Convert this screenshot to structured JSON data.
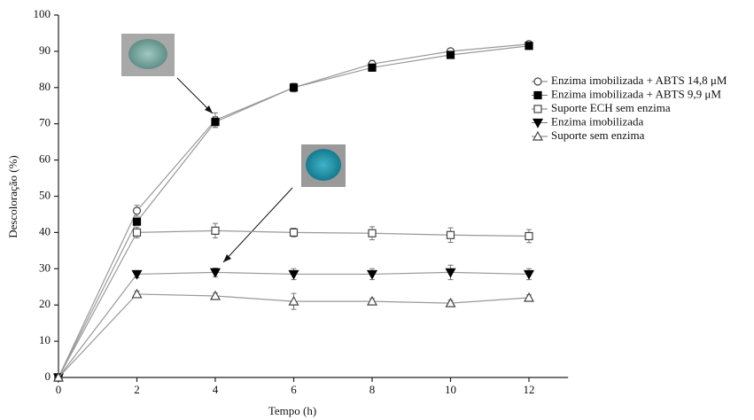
{
  "chart_data": {
    "type": "line",
    "x_label": "Tempo (h)",
    "y_label": "Descoloração (%)",
    "x": [
      0,
      2,
      4,
      6,
      8,
      10,
      12
    ],
    "xlim": [
      0,
      13
    ],
    "xticks": [
      0,
      2,
      4,
      6,
      8,
      10,
      12
    ],
    "ylim": [
      0,
      100
    ],
    "yticks": [
      0,
      10,
      20,
      30,
      40,
      50,
      60,
      70,
      80,
      90,
      100
    ],
    "grid": false,
    "legend": "right",
    "series": [
      {
        "name": "Enzima imobilizada + ABTS 14,8 μM",
        "color": "#444444",
        "marker": "circle-open",
        "values": [
          0,
          46,
          71,
          80,
          86.5,
          90,
          92
        ],
        "errors": [
          0,
          1.5,
          2,
          1.2,
          1,
          0.8,
          0.8
        ]
      },
      {
        "name": "Enzima imobilizada + ABTS 9,9 μM",
        "color": "#000000",
        "marker": "square-filled",
        "values": [
          0,
          43,
          70.5,
          80,
          85.5,
          89,
          91.5
        ],
        "errors": [
          0,
          1,
          1.5,
          1,
          1,
          0.8,
          0.8
        ]
      },
      {
        "name": "Suporte ECH sem enzima",
        "color": "#444444",
        "marker": "square-open",
        "values": [
          0,
          40,
          40.5,
          40,
          39.8,
          39.3,
          39
        ],
        "errors": [
          0,
          1.5,
          2,
          1.2,
          1.8,
          2,
          1.8
        ]
      },
      {
        "name": "Enzima imobilizada",
        "color": "#000000",
        "marker": "triangle-down-filled",
        "values": [
          0,
          28.5,
          29,
          28.5,
          28.5,
          29,
          28.5
        ],
        "errors": [
          0,
          1,
          1.2,
          1.5,
          1.5,
          2,
          1.5
        ]
      },
      {
        "name": "Suporte sem enzima",
        "color": "#444444",
        "marker": "triangle-up-open",
        "values": [
          0,
          23,
          22.5,
          21,
          21,
          20.5,
          22
        ],
        "errors": [
          0,
          0.8,
          0.8,
          2.2,
          0.8,
          0.8,
          0.8
        ]
      }
    ]
  }
}
